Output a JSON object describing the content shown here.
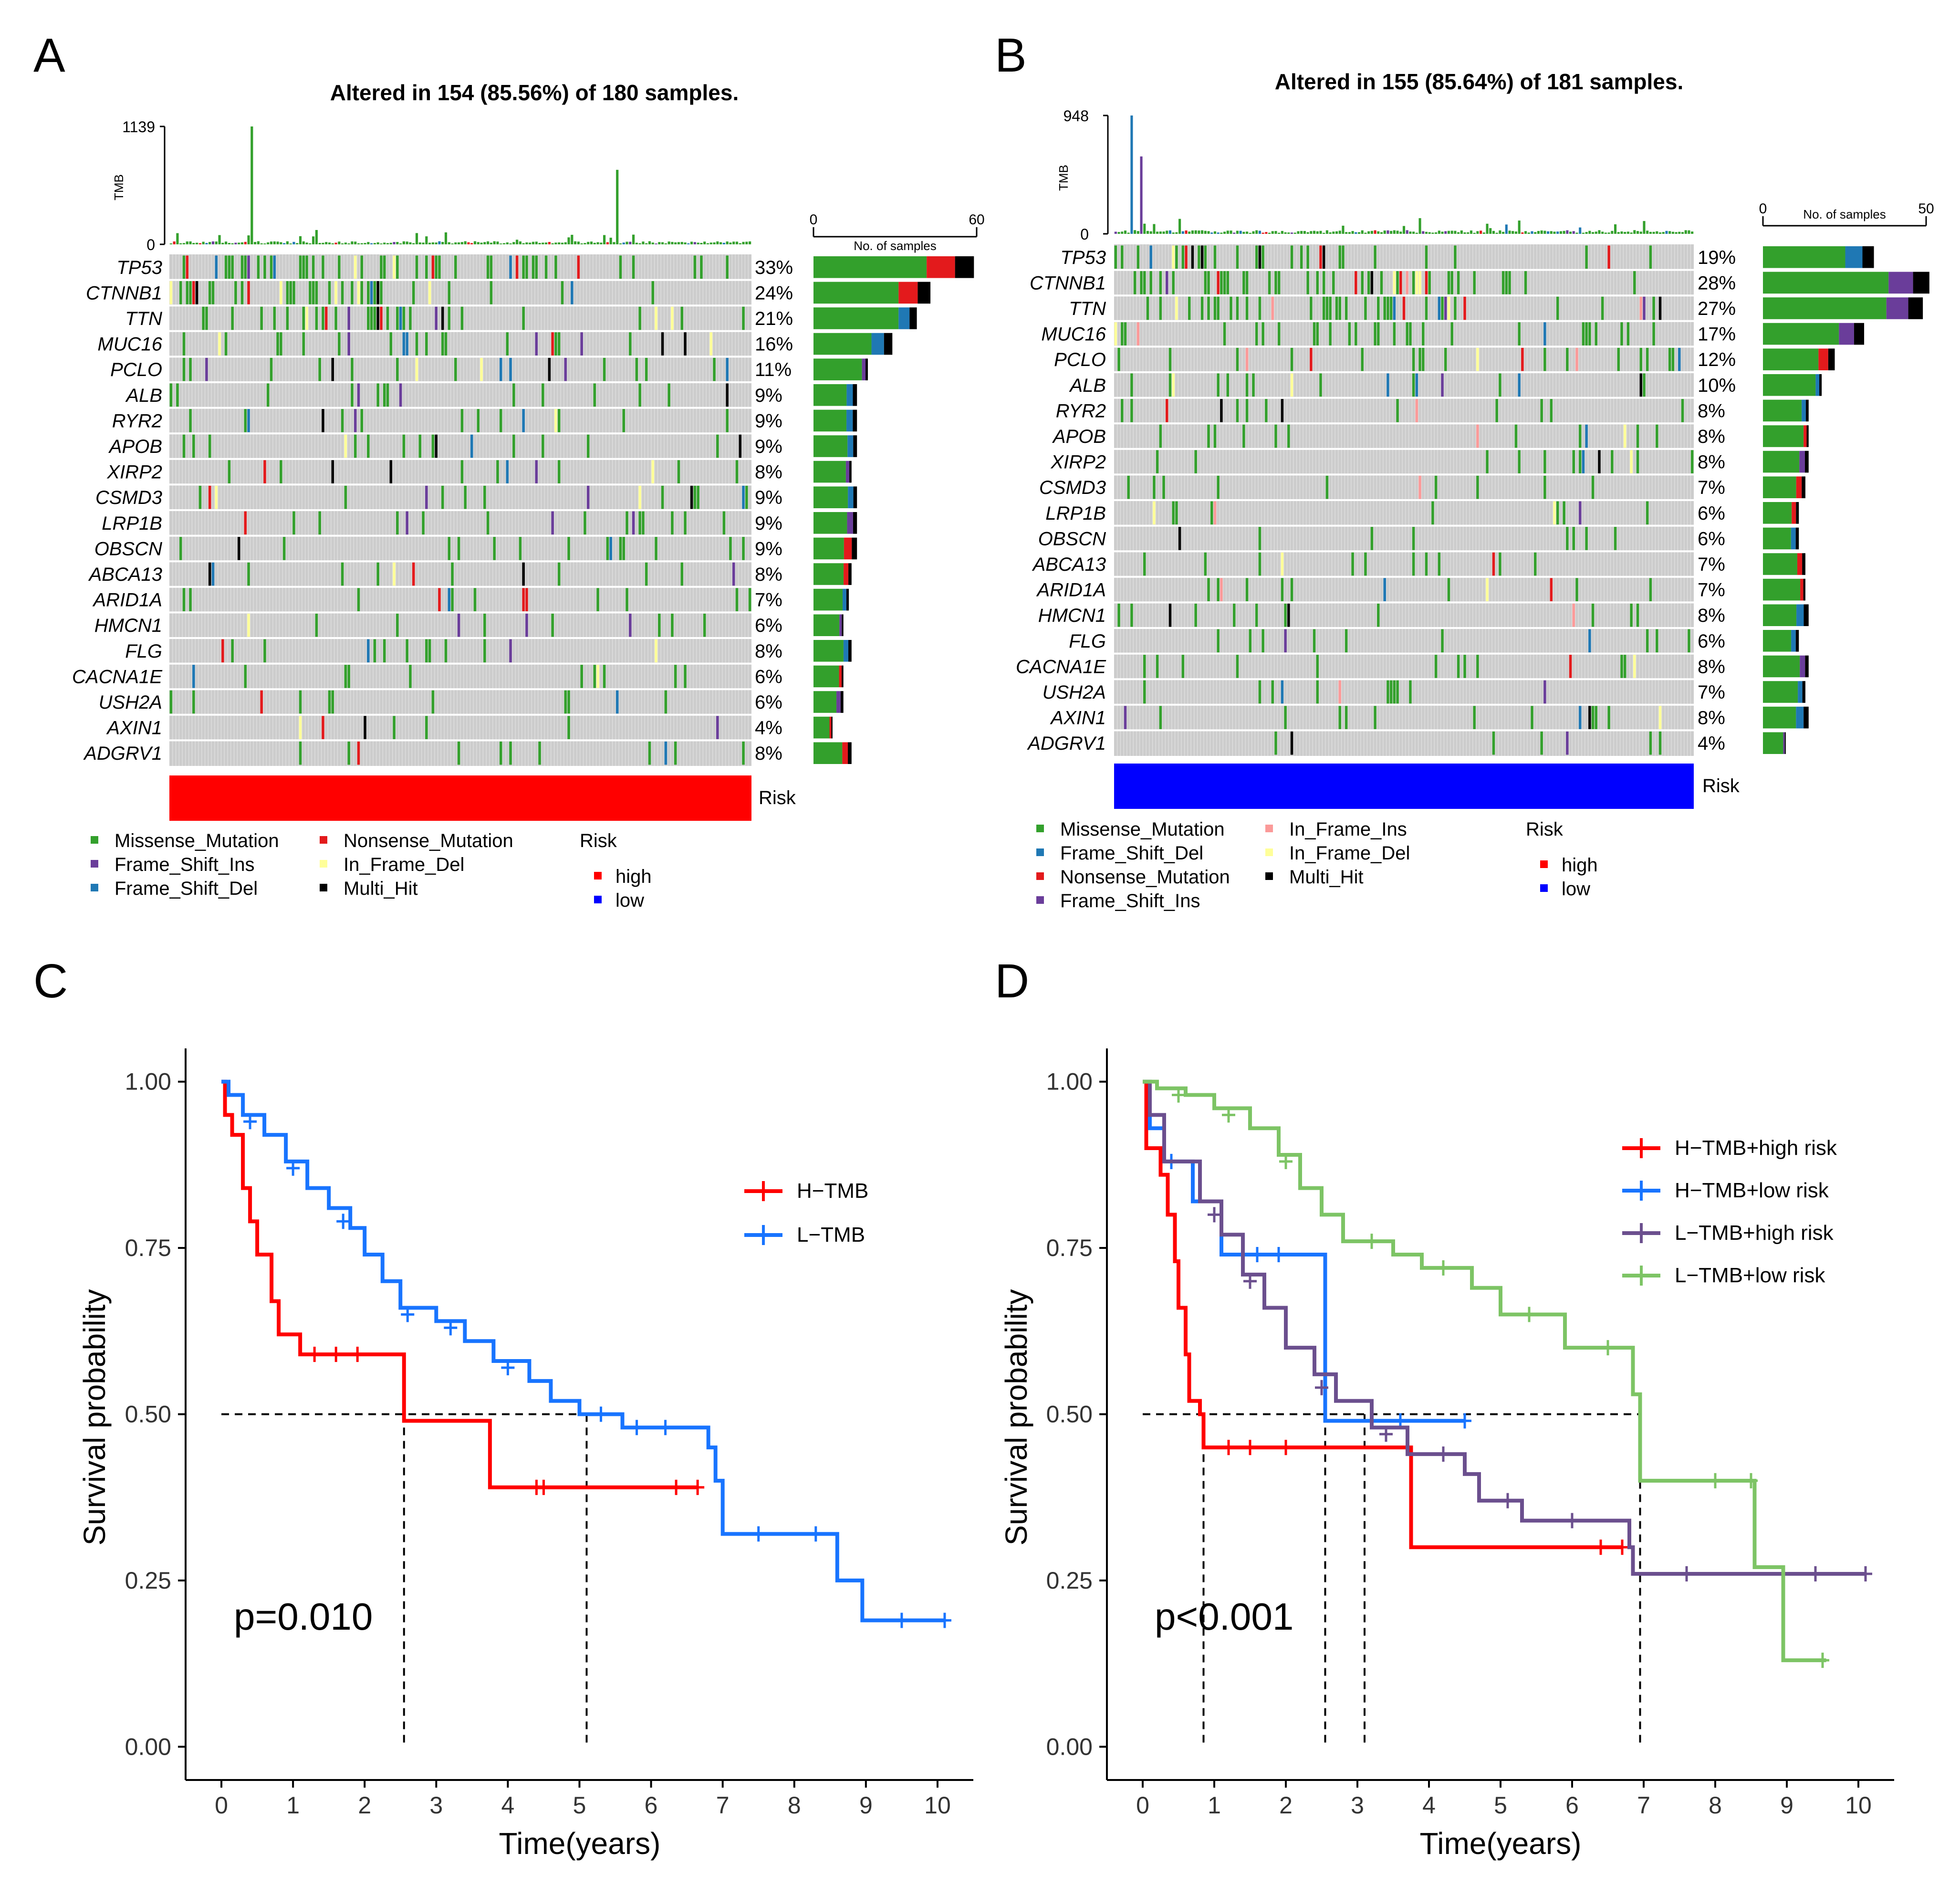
{
  "figure": {
    "panel_letters": [
      "A",
      "B",
      "C",
      "D"
    ]
  },
  "colors": {
    "Missense_Mutation": "#33a02c",
    "Nonsense_Mutation": "#e31a1c",
    "Frame_Shift_Ins": "#6a3d9a",
    "Frame_Shift_Del": "#1f78b4",
    "In_Frame_Del": "#ffff99",
    "In_Frame_Ins": "#fb9a99",
    "Multi_Hit": "#000000",
    "grid_bg": "#cccccc",
    "risk_high": "#ff0000",
    "risk_low": "#0000ff",
    "km_red": "#ff0000",
    "km_blue": "#1874ff",
    "km_purple": "#6b4f8e",
    "km_green": "#7dc465"
  },
  "chart_data": [
    {
      "panel": "A",
      "type": "oncoplot",
      "title": "Altered in 154 (85.56%) of 180 samples.",
      "tmb_axis_label": "TMB",
      "tmb_ticks": [
        "1139",
        "0"
      ],
      "tmb_max": 1139,
      "samples_axis_label": "No. of samples",
      "samples_ticks": [
        "0",
        "60"
      ],
      "samples_max": 60,
      "risk_label": "Risk",
      "risk_group": "high",
      "genes": [
        "TP53",
        "CTNNB1",
        "TTN",
        "MUC16",
        "PCLO",
        "ALB",
        "RYR2",
        "APOB",
        "XIRP2",
        "CSMD3",
        "LRP1B",
        "OBSCN",
        "ABCA13",
        "ARID1A",
        "HMCN1",
        "FLG",
        "CACNA1E",
        "USH2A",
        "AXIN1",
        "ADGRV1"
      ],
      "percents": [
        "33%",
        "24%",
        "21%",
        "16%",
        "11%",
        "9%",
        "9%",
        "9%",
        "8%",
        "9%",
        "9%",
        "9%",
        "8%",
        "7%",
        "6%",
        "8%",
        "6%",
        "6%",
        "4%",
        "8%"
      ],
      "counts": [
        59,
        43,
        38,
        29,
        20,
        16,
        16,
        16,
        14,
        16,
        16,
        16,
        14,
        13,
        11,
        14,
        11,
        11,
        7,
        14
      ],
      "legend_classes": [
        "Missense_Mutation",
        "Nonsense_Mutation",
        "Frame_Shift_Ins",
        "In_Frame_Del",
        "Frame_Shift_Del",
        "Multi_Hit"
      ],
      "legend_risk_title": "Risk",
      "legend_risk_items": [
        "high",
        "low"
      ]
    },
    {
      "panel": "B",
      "type": "oncoplot",
      "title": "Altered in 155 (85.64%) of 181 samples.",
      "tmb_axis_label": "TMB",
      "tmb_ticks": [
        "948",
        "0"
      ],
      "tmb_max": 948,
      "samples_axis_label": "No. of samples",
      "samples_ticks": [
        "0",
        "50"
      ],
      "samples_max": 50,
      "risk_label": "Risk",
      "risk_group": "low",
      "genes": [
        "TP53",
        "CTNNB1",
        "TTN",
        "MUC16",
        "PCLO",
        "ALB",
        "RYR2",
        "APOB",
        "XIRP2",
        "CSMD3",
        "LRP1B",
        "OBSCN",
        "ABCA13",
        "ARID1A",
        "HMCN1",
        "FLG",
        "CACNA1E",
        "USH2A",
        "AXIN1",
        "ADGRV1"
      ],
      "percents": [
        "19%",
        "28%",
        "27%",
        "17%",
        "12%",
        "10%",
        "8%",
        "8%",
        "8%",
        "7%",
        "6%",
        "6%",
        "7%",
        "7%",
        "8%",
        "6%",
        "8%",
        "7%",
        "8%",
        "4%"
      ],
      "counts": [
        34,
        51,
        49,
        31,
        22,
        18,
        14,
        14,
        14,
        13,
        11,
        11,
        13,
        13,
        14,
        11,
        14,
        13,
        14,
        7
      ],
      "legend_classes": [
        "Missense_Mutation",
        "Frame_Shift_Del",
        "Nonsense_Mutation",
        "Frame_Shift_Ins",
        "In_Frame_Ins",
        "In_Frame_Del",
        "Multi_Hit"
      ],
      "legend_risk_title": "Risk",
      "legend_risk_items": [
        "high",
        "low"
      ]
    },
    {
      "panel": "C",
      "type": "line",
      "subtype": "kaplan-meier",
      "xlabel": "Time(years)",
      "ylabel": "Survival probability",
      "xlim": [
        -0.5,
        10.5
      ],
      "ylim": [
        -0.05,
        1.05
      ],
      "xticks": [
        0,
        1,
        2,
        3,
        4,
        5,
        6,
        7,
        8,
        9,
        10
      ],
      "yticks": [
        "0.00",
        "0.25",
        "0.50",
        "0.75",
        "1.00"
      ],
      "ytick_values": [
        0,
        0.25,
        0.5,
        0.75,
        1.0
      ],
      "pvalue": "p=0.010",
      "median_line": 0.5,
      "median_times": [
        2.55,
        5.1
      ],
      "series": [
        {
          "name": "H−TMB",
          "color_key": "km_red",
          "steps": [
            [
              0,
              1.0
            ],
            [
              0.05,
              0.95
            ],
            [
              0.15,
              0.92
            ],
            [
              0.3,
              0.84
            ],
            [
              0.4,
              0.79
            ],
            [
              0.5,
              0.74
            ],
            [
              0.7,
              0.67
            ],
            [
              0.8,
              0.62
            ],
            [
              1.1,
              0.59
            ],
            [
              2.55,
              0.49
            ],
            [
              3.75,
              0.39
            ],
            [
              6.65,
              0.39
            ]
          ],
          "censors": [
            [
              1.3,
              0.59
            ],
            [
              1.6,
              0.59
            ],
            [
              1.9,
              0.59
            ],
            [
              4.4,
              0.39
            ],
            [
              4.5,
              0.39
            ],
            [
              6.35,
              0.39
            ],
            [
              6.65,
              0.39
            ]
          ]
        },
        {
          "name": "L−TMB",
          "color_key": "km_blue",
          "steps": [
            [
              0,
              1.0
            ],
            [
              0.1,
              0.98
            ],
            [
              0.3,
              0.95
            ],
            [
              0.6,
              0.92
            ],
            [
              0.9,
              0.88
            ],
            [
              1.2,
              0.84
            ],
            [
              1.5,
              0.81
            ],
            [
              1.8,
              0.78
            ],
            [
              2.0,
              0.74
            ],
            [
              2.25,
              0.7
            ],
            [
              2.5,
              0.66
            ],
            [
              3.0,
              0.64
            ],
            [
              3.4,
              0.61
            ],
            [
              3.8,
              0.58
            ],
            [
              4.3,
              0.55
            ],
            [
              4.6,
              0.52
            ],
            [
              5.0,
              0.5
            ],
            [
              5.6,
              0.48
            ],
            [
              6.8,
              0.45
            ],
            [
              6.9,
              0.4
            ],
            [
              7.0,
              0.32
            ],
            [
              8.6,
              0.25
            ],
            [
              8.95,
              0.19
            ],
            [
              10.1,
              0.19
            ]
          ],
          "censors": [
            [
              0.4,
              0.94
            ],
            [
              1.0,
              0.87
            ],
            [
              1.7,
              0.79
            ],
            [
              2.6,
              0.65
            ],
            [
              3.2,
              0.63
            ],
            [
              4.0,
              0.57
            ],
            [
              5.3,
              0.5
            ],
            [
              5.8,
              0.48
            ],
            [
              6.2,
              0.48
            ],
            [
              7.5,
              0.32
            ],
            [
              8.3,
              0.32
            ],
            [
              9.5,
              0.19
            ],
            [
              10.1,
              0.19
            ]
          ]
        }
      ]
    },
    {
      "panel": "D",
      "type": "line",
      "subtype": "kaplan-meier",
      "xlabel": "Time(years)",
      "ylabel": "Survival probability",
      "xlim": [
        -0.5,
        10.5
      ],
      "ylim": [
        -0.05,
        1.05
      ],
      "xticks": [
        0,
        1,
        2,
        3,
        4,
        5,
        6,
        7,
        8,
        9,
        10
      ],
      "yticks": [
        "0.00",
        "0.25",
        "0.50",
        "0.75",
        "1.00"
      ],
      "ytick_values": [
        0,
        0.25,
        0.5,
        0.75,
        1.0
      ],
      "pvalue": "p<0.001",
      "median_line": 0.5,
      "median_times": [
        0.85,
        2.55,
        3.1,
        6.95
      ],
      "series": [
        {
          "name": "H−TMB+high risk",
          "color_key": "km_red",
          "steps": [
            [
              0,
              1.0
            ],
            [
              0.05,
              0.9
            ],
            [
              0.25,
              0.86
            ],
            [
              0.35,
              0.8
            ],
            [
              0.45,
              0.73
            ],
            [
              0.5,
              0.66
            ],
            [
              0.6,
              0.59
            ],
            [
              0.65,
              0.52
            ],
            [
              0.8,
              0.5
            ],
            [
              0.85,
              0.45
            ],
            [
              3.75,
              0.3
            ],
            [
              6.7,
              0.3
            ]
          ],
          "censors": [
            [
              1.2,
              0.45
            ],
            [
              1.5,
              0.45
            ],
            [
              2.0,
              0.45
            ],
            [
              6.4,
              0.3
            ],
            [
              6.7,
              0.3
            ]
          ]
        },
        {
          "name": "H−TMB+low risk",
          "color_key": "km_blue",
          "steps": [
            [
              0,
              1.0
            ],
            [
              0.1,
              0.93
            ],
            [
              0.3,
              0.88
            ],
            [
              0.7,
              0.82
            ],
            [
              1.1,
              0.74
            ],
            [
              2.55,
              0.49
            ],
            [
              4.5,
              0.49
            ]
          ],
          "censors": [
            [
              0.4,
              0.88
            ],
            [
              1.6,
              0.74
            ],
            [
              1.9,
              0.74
            ],
            [
              3.6,
              0.49
            ],
            [
              4.5,
              0.49
            ]
          ]
        },
        {
          "name": "L−TMB+high risk",
          "color_key": "km_purple",
          "steps": [
            [
              0,
              1.0
            ],
            [
              0.1,
              0.95
            ],
            [
              0.3,
              0.88
            ],
            [
              0.8,
              0.82
            ],
            [
              1.1,
              0.77
            ],
            [
              1.4,
              0.71
            ],
            [
              1.7,
              0.66
            ],
            [
              2.0,
              0.6
            ],
            [
              2.4,
              0.56
            ],
            [
              2.7,
              0.52
            ],
            [
              3.2,
              0.48
            ],
            [
              3.7,
              0.44
            ],
            [
              4.5,
              0.41
            ],
            [
              4.7,
              0.37
            ],
            [
              5.3,
              0.34
            ],
            [
              6.8,
              0.3
            ],
            [
              6.85,
              0.26
            ],
            [
              10.1,
              0.26
            ]
          ],
          "censors": [
            [
              1.0,
              0.8
            ],
            [
              1.5,
              0.7
            ],
            [
              2.5,
              0.54
            ],
            [
              3.4,
              0.47
            ],
            [
              4.2,
              0.44
            ],
            [
              5.1,
              0.37
            ],
            [
              6.0,
              0.34
            ],
            [
              7.6,
              0.26
            ],
            [
              9.4,
              0.26
            ],
            [
              10.1,
              0.26
            ]
          ]
        },
        {
          "name": "L−TMB+low risk",
          "color_key": "km_green",
          "steps": [
            [
              0,
              1.0
            ],
            [
              0.2,
              0.99
            ],
            [
              0.6,
              0.98
            ],
            [
              1.0,
              0.96
            ],
            [
              1.5,
              0.93
            ],
            [
              1.9,
              0.89
            ],
            [
              2.2,
              0.84
            ],
            [
              2.5,
              0.8
            ],
            [
              2.8,
              0.76
            ],
            [
              3.5,
              0.74
            ],
            [
              3.9,
              0.72
            ],
            [
              4.6,
              0.69
            ],
            [
              5.0,
              0.65
            ],
            [
              5.9,
              0.6
            ],
            [
              6.85,
              0.53
            ],
            [
              6.95,
              0.4
            ],
            [
              8.55,
              0.27
            ],
            [
              8.95,
              0.13
            ],
            [
              9.55,
              0.13
            ]
          ],
          "censors": [
            [
              0.5,
              0.98
            ],
            [
              1.2,
              0.95
            ],
            [
              2.0,
              0.88
            ],
            [
              3.2,
              0.76
            ],
            [
              4.2,
              0.72
            ],
            [
              5.4,
              0.65
            ],
            [
              6.5,
              0.6
            ],
            [
              8.0,
              0.4
            ],
            [
              8.5,
              0.4
            ],
            [
              9.5,
              0.13
            ]
          ]
        }
      ]
    }
  ]
}
